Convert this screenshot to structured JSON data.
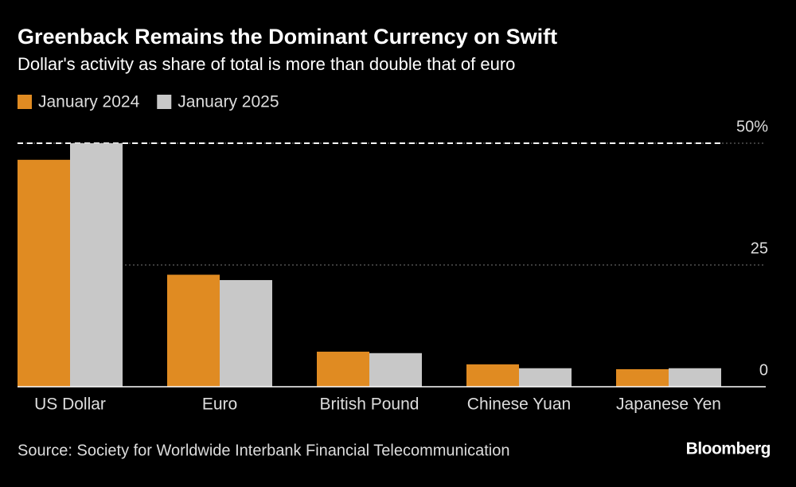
{
  "chart_data": {
    "type": "bar",
    "title": "Greenback Remains the Dominant Currency on Swift",
    "subtitle": "Dollar's activity as share of total is more than double that of euro",
    "source": "Source: Society for Worldwide Interbank Financial Telecommunication",
    "brand": "Bloomberg",
    "categories": [
      "US Dollar",
      "Euro",
      "British Pound",
      "Chinese Yuan",
      "Japanese Yen"
    ],
    "series": [
      {
        "name": "January 2024",
        "color": "#e08b22",
        "values": [
          46.6,
          23.0,
          7.2,
          4.6,
          3.6
        ]
      },
      {
        "name": "January 2025",
        "color": "#c8c8c8",
        "values": [
          50.0,
          21.9,
          6.9,
          3.8,
          3.8
        ]
      }
    ],
    "ylim": [
      0,
      50
    ],
    "yticks": [
      0,
      25,
      {
        "value": 50,
        "label": "50%"
      }
    ],
    "grid": true
  }
}
